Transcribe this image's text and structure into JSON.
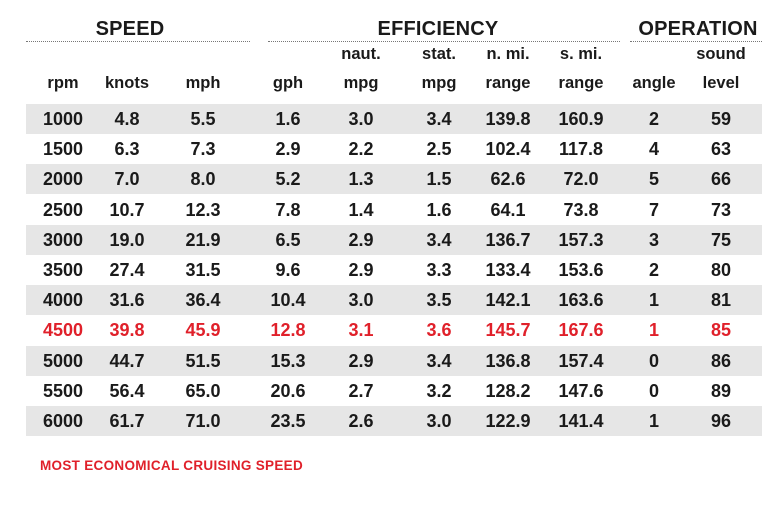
{
  "groups": {
    "speed": "SPEED",
    "efficiency": "EFFICIENCY",
    "operation": "OPERATION"
  },
  "columns": [
    {
      "line1": "",
      "line2": "rpm"
    },
    {
      "line1": "",
      "line2": "knots"
    },
    {
      "line1": "",
      "line2": "mph"
    },
    {
      "line1": "",
      "line2": "gph"
    },
    {
      "line1": "naut.",
      "line2": "mpg"
    },
    {
      "line1": "stat.",
      "line2": "mpg"
    },
    {
      "line1": "n. mi.",
      "line2": "range"
    },
    {
      "line1": "s. mi.",
      "line2": "range"
    },
    {
      "line1": "",
      "line2": "angle"
    },
    {
      "line1": "sound",
      "line2": "level"
    }
  ],
  "rows": [
    [
      "1000",
      "4.8",
      "5.5",
      "1.6",
      "3.0",
      "3.4",
      "139.8",
      "160.9",
      "2",
      "59"
    ],
    [
      "1500",
      "6.3",
      "7.3",
      "2.9",
      "2.2",
      "2.5",
      "102.4",
      "117.8",
      "4",
      "63"
    ],
    [
      "2000",
      "7.0",
      "8.0",
      "5.2",
      "1.3",
      "1.5",
      "62.6",
      "72.0",
      "5",
      "66"
    ],
    [
      "2500",
      "10.7",
      "12.3",
      "7.8",
      "1.4",
      "1.6",
      "64.1",
      "73.8",
      "7",
      "73"
    ],
    [
      "3000",
      "19.0",
      "21.9",
      "6.5",
      "2.9",
      "3.4",
      "136.7",
      "157.3",
      "3",
      "75"
    ],
    [
      "3500",
      "27.4",
      "31.5",
      "9.6",
      "2.9",
      "3.3",
      "133.4",
      "153.6",
      "2",
      "80"
    ],
    [
      "4000",
      "31.6",
      "36.4",
      "10.4",
      "3.0",
      "3.5",
      "142.1",
      "163.6",
      "1",
      "81"
    ],
    [
      "4500",
      "39.8",
      "45.9",
      "12.8",
      "3.1",
      "3.6",
      "145.7",
      "167.6",
      "1",
      "85"
    ],
    [
      "5000",
      "44.7",
      "51.5",
      "15.3",
      "2.9",
      "3.4",
      "136.8",
      "157.4",
      "0",
      "86"
    ],
    [
      "5500",
      "56.4",
      "65.0",
      "20.6",
      "2.7",
      "3.2",
      "128.2",
      "147.6",
      "0",
      "89"
    ],
    [
      "6000",
      "61.7",
      "71.0",
      "23.5",
      "2.6",
      "3.0",
      "122.9",
      "141.4",
      "1",
      "96"
    ]
  ],
  "highlight_row_index": 7,
  "highlight_color": "#e0202a",
  "shade_color": "#e6e6e6",
  "footnote": "MOST ECONOMICAL CRUISING SPEED"
}
